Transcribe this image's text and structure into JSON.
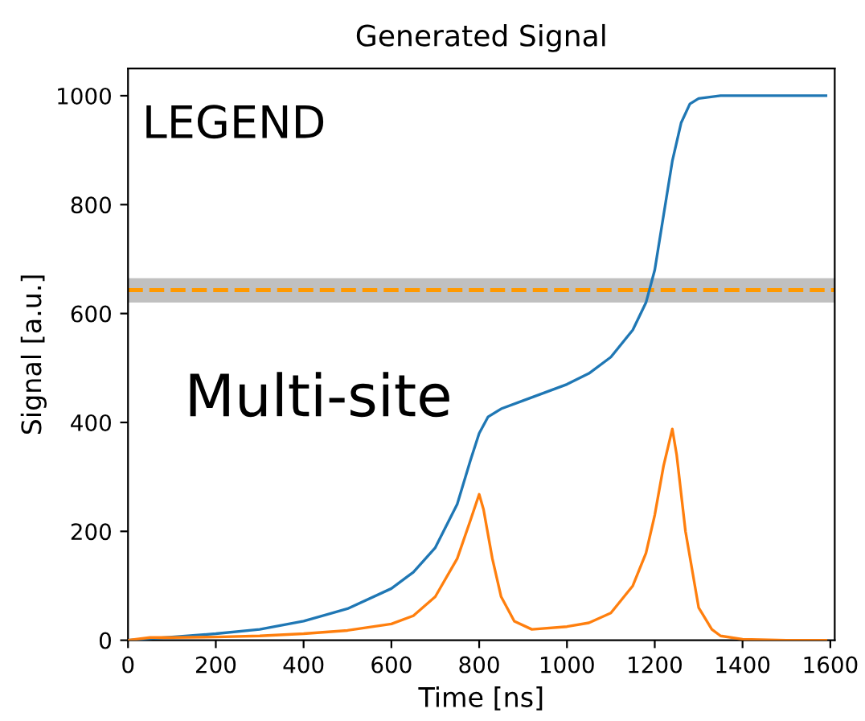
{
  "chart_data": {
    "type": "line",
    "title": "Generated Signal",
    "xlabel": "Time [ns]",
    "ylabel": "Signal [a.u.]",
    "annotations": [
      "LEGEND",
      "Multi-site"
    ],
    "series": [
      {
        "color": "#1f77b4",
        "x": [
          0,
          100,
          200,
          300,
          400,
          500,
          600,
          650,
          700,
          750,
          780,
          800,
          820,
          850,
          900,
          1000,
          1050,
          1100,
          1150,
          1180,
          1200,
          1220,
          1240,
          1260,
          1280,
          1300,
          1350,
          1590
        ],
        "values": [
          0,
          6,
          12,
          20,
          35,
          58,
          95,
          125,
          170,
          250,
          330,
          380,
          410,
          425,
          440,
          470,
          490,
          520,
          570,
          620,
          680,
          780,
          880,
          950,
          985,
          995,
          1000,
          1000
        ]
      },
      {
        "color": "#ff7f0e",
        "x": [
          0,
          50,
          100,
          200,
          300,
          400,
          500,
          600,
          650,
          700,
          750,
          780,
          800,
          810,
          830,
          850,
          880,
          920,
          1000,
          1050,
          1100,
          1150,
          1180,
          1200,
          1220,
          1240,
          1250,
          1270,
          1300,
          1330,
          1350,
          1400,
          1500,
          1590
        ],
        "values": [
          0,
          5,
          5,
          6,
          8,
          12,
          18,
          30,
          45,
          80,
          150,
          220,
          268,
          240,
          150,
          80,
          35,
          20,
          25,
          32,
          50,
          100,
          160,
          230,
          320,
          388,
          340,
          200,
          60,
          20,
          8,
          2,
          0,
          0
        ]
      }
    ],
    "ref_lines": [
      {
        "axis": "y",
        "value": 643,
        "color": "#ff9900",
        "line_style": "dashed"
      }
    ],
    "bands": [
      {
        "axis": "y",
        "from": 620,
        "to": 665,
        "color": "#c0c0c0"
      }
    ],
    "xlim": [
      0,
      1610
    ],
    "ylim": [
      0,
      1050
    ],
    "xticks": [
      0,
      200,
      400,
      600,
      800,
      1000,
      1200,
      1400,
      1600
    ],
    "yticks": [
      0,
      200,
      400,
      600,
      800,
      1000
    ],
    "grid": false,
    "legend": false
  }
}
